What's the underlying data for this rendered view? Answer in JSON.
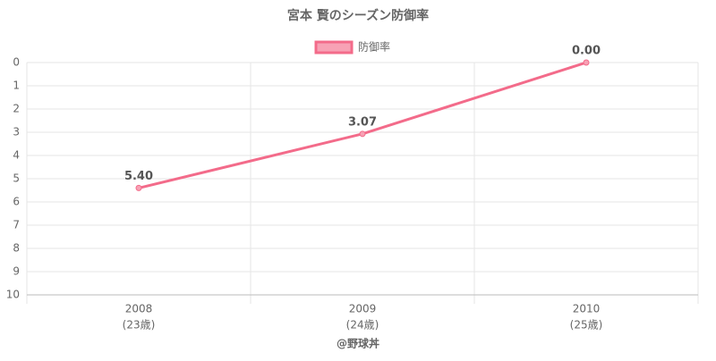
{
  "chart_data": {
    "type": "line",
    "title": "宮本 賢のシーズン防御率",
    "categories": [
      [
        "2008",
        "(23歳)"
      ],
      [
        "2009",
        "(24歳)"
      ],
      [
        "2010",
        "(25歳)"
      ]
    ],
    "series": [
      {
        "name": "防御率",
        "color": "#f36b8a",
        "values": [
          5.4,
          3.07,
          0
        ],
        "value_labels": [
          "5.40",
          "3.07",
          "0.00"
        ]
      }
    ],
    "ylim": [
      0,
      10
    ],
    "yticks": [
      0,
      1,
      2,
      3,
      4,
      5,
      6,
      7,
      8,
      9,
      10
    ],
    "y_inverted": true,
    "grid": true,
    "legend": "top",
    "credit": "@野球丼"
  }
}
